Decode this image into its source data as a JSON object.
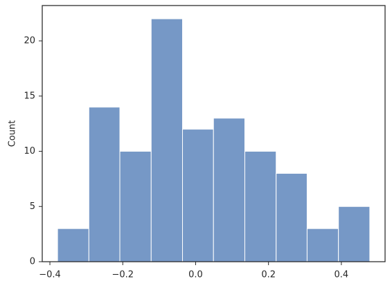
{
  "chart_data": {
    "type": "histogram",
    "y_label": "Count",
    "bins": [
      -0.379,
      -0.293,
      -0.208,
      -0.122,
      -0.036,
      0.049,
      0.135,
      0.221,
      0.306,
      0.392,
      0.478
    ],
    "values": [
      3,
      14,
      10,
      22,
      12,
      13,
      10,
      8,
      3,
      5
    ],
    "color": "#7698c6",
    "edge_color": "#ffffff",
    "xlim": [
      -0.421,
      0.52
    ],
    "xticks": [
      {
        "value": -0.4,
        "label": "−0.4"
      },
      {
        "value": -0.2,
        "label": "−0.2"
      },
      {
        "value": 0,
        "label": "0.0"
      },
      0.2,
      0.4
    ],
    "ylim": [
      0,
      23.2
    ],
    "yticks": [
      0,
      5,
      10,
      15,
      20
    ],
    "grid": false
  }
}
